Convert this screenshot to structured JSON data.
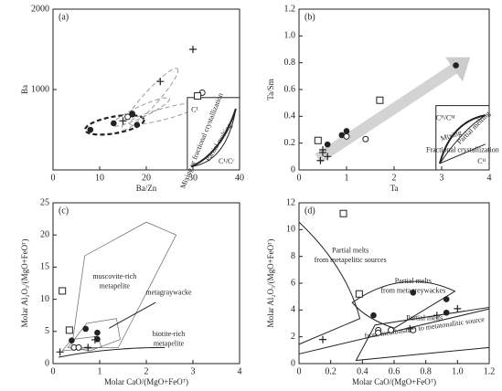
{
  "chart_data": [
    {
      "type": "scatter",
      "panel": "(a)",
      "x_label": "Ba/Zn",
      "y_label": "Ba",
      "xlim": [
        0,
        40
      ],
      "xticks": [
        0,
        10,
        20,
        30,
        40
      ],
      "ylim": [
        0,
        2000
      ],
      "yticks": [
        1000,
        2000
      ],
      "series": [
        {
          "marker": "filled-circle",
          "color": "#222",
          "x": [
            8,
            13,
            17,
            18,
            17
          ],
          "values": [
            500,
            580,
            700,
            560,
            690
          ]
        },
        {
          "marker": "open-circle",
          "color": "#222",
          "x": [
            16,
            32
          ],
          "values": [
            660,
            960
          ]
        },
        {
          "marker": "cross",
          "color": "#222",
          "x": [
            15,
            23,
            30
          ],
          "values": [
            610,
            1100,
            1500
          ]
        },
        {
          "marker": "open-square",
          "color": "#222",
          "x": [
            31
          ],
          "values": [
            920
          ]
        }
      ],
      "annotations": [
        "C¹",
        "Mixing or fractional crystallization",
        "Partial melting",
        "C¹/Cᶜ"
      ]
    },
    {
      "type": "scatter",
      "panel": "(b)",
      "x_label": "Ta",
      "y_label": "Ta/Sm",
      "xlim": [
        0,
        4
      ],
      "xticks": [
        0,
        1,
        2,
        3,
        4
      ],
      "ylim": [
        0,
        1.2
      ],
      "yticks": [
        0,
        0.2,
        0.4,
        0.6,
        0.8,
        {
          "value": 1,
          "label": "1.0"
        },
        1.2
      ],
      "series": [
        {
          "marker": "filled-circle",
          "color": "#222",
          "x": [
            0.6,
            0.9,
            1.0,
            3.3
          ],
          "values": [
            0.19,
            0.26,
            0.29,
            0.78
          ]
        },
        {
          "marker": "open-circle",
          "color": "#222",
          "x": [
            1.0,
            1.4
          ],
          "values": [
            0.25,
            0.23
          ]
        },
        {
          "marker": "cross",
          "color": "#222",
          "x": [
            0.45,
            0.5,
            0.6,
            0.5
          ],
          "values": [
            0.07,
            0.13,
            0.1,
            0.15
          ]
        },
        {
          "marker": "open-square",
          "color": "#222",
          "x": [
            0.4,
            1.7
          ],
          "values": [
            0.22,
            0.52
          ]
        }
      ],
      "annotations": [
        "Cᴴ/Cᴹ",
        "Mixing",
        "Partial melting",
        "Fractional crystallization",
        "Cᴴ"
      ]
    },
    {
      "type": "scatter",
      "panel": "(c)",
      "x_label": "Molar CaO/(MgO+FeOᵀ)",
      "y_label": "Molar Al₂O₃/(MgO+FeOᵀ)",
      "xlim": [
        0,
        4
      ],
      "xticks": [
        0,
        1,
        2,
        3,
        4
      ],
      "ylim": [
        0,
        25
      ],
      "yticks": [
        0,
        5,
        10,
        15,
        20,
        25
      ],
      "series": [
        {
          "marker": "open-square",
          "color": "#222",
          "x": [
            0.2,
            0.35
          ],
          "values": [
            11.3,
            5.2
          ]
        },
        {
          "marker": "filled-circle",
          "color": "#222",
          "x": [
            0.4,
            0.7,
            0.95,
            0.95
          ],
          "values": [
            3.6,
            5.4,
            4.8,
            3.8
          ]
        },
        {
          "marker": "open-circle",
          "color": "#222",
          "x": [
            0.45,
            0.55
          ],
          "values": [
            2.5,
            2.5
          ]
        },
        {
          "marker": "cross",
          "color": "#222",
          "x": [
            0.15,
            0.75,
            0.9
          ],
          "values": [
            1.8,
            2.5,
            3.7
          ]
        }
      ],
      "annotations": [
        "muscovite-rich",
        "metapelite",
        "metagraywacke",
        "biotite-rich",
        "metapelite"
      ]
    },
    {
      "type": "scatter",
      "panel": "(d)",
      "x_label": "Molar CaO/(MgO+FeOᵀ)",
      "y_label": "Molar Al₂O₃/(MgO+FeOᵀ)",
      "xlim": [
        0,
        1.2
      ],
      "xticks": [
        0,
        0.2,
        0.4,
        0.6,
        0.8,
        {
          "value": 1,
          "label": "1.0"
        },
        1.2
      ],
      "ylim": [
        0,
        12
      ],
      "yticks": [
        0,
        2,
        4,
        6,
        8,
        10,
        12
      ],
      "series": [
        {
          "marker": "open-square",
          "color": "#222",
          "x": [
            0.28,
            0.38
          ],
          "values": [
            11.2,
            5.2
          ]
        },
        {
          "marker": "filled-circle",
          "color": "#222",
          "x": [
            0.47,
            0.72,
            0.93,
            0.93
          ],
          "values": [
            3.6,
            5.3,
            4.8,
            3.8
          ]
        },
        {
          "marker": "open-circle",
          "color": "#222",
          "x": [
            0.5,
            0.5,
            0.58,
            0.72
          ],
          "values": [
            2.5,
            2.3,
            2.5,
            2.5
          ]
        },
        {
          "marker": "cross",
          "color": "#222",
          "x": [
            0.15,
            0.7,
            0.87,
            1.0
          ],
          "values": [
            1.8,
            2.6,
            3.6,
            4.1
          ]
        }
      ],
      "annotations": [
        "Partial melts",
        "from metapelitic sources",
        "Partial melts",
        "from metagreywackes",
        "Partial melts",
        "from metabasaltic to metatonalitic source"
      ]
    }
  ]
}
